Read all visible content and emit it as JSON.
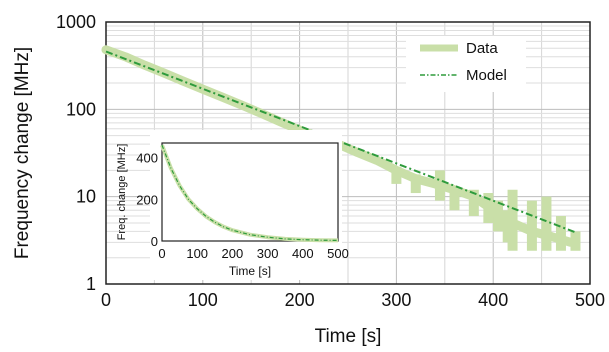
{
  "chart_data": [
    {
      "type": "line",
      "xlabel": "Time [s]",
      "ylabel": "Frequency change [MHz]",
      "yscale": "log",
      "xlim": [
        0,
        500
      ],
      "ylim": [
        1,
        1000
      ],
      "x_ticks": [
        "0",
        "100",
        "200",
        "300",
        "400",
        "500"
      ],
      "y_ticks": [
        "1",
        "10",
        "100",
        "1000"
      ],
      "grid": true,
      "legend_position": "top-right",
      "series": [
        {
          "name": "Data",
          "style": "thick-band",
          "color": "#c9dfa8",
          "x": [
            0,
            20,
            40,
            60,
            80,
            100,
            120,
            140,
            160,
            180,
            200,
            220,
            240,
            260,
            280,
            300,
            320,
            340,
            360,
            380,
            400,
            420,
            440,
            460,
            480,
            485
          ],
          "y": [
            480,
            400,
            320,
            260,
            210,
            170,
            138,
            112,
            90,
            72,
            58,
            48,
            40,
            32,
            26,
            20,
            16,
            14,
            12,
            10,
            7,
            5,
            4,
            3.5,
            3,
            3
          ]
        },
        {
          "name": "Model",
          "style": "dash-dot",
          "color": "#2e9b3c",
          "x": [
            0,
            485
          ],
          "y": [
            460,
            3.9
          ]
        }
      ]
    },
    {
      "type": "line",
      "xlabel": "Time [s]",
      "ylabel": "Freq. change [MHz]",
      "xlim": [
        0,
        500
      ],
      "ylim": [
        0,
        470
      ],
      "x_ticks": [
        "0",
        "100",
        "200",
        "300",
        "400",
        "500"
      ],
      "y_ticks": [
        "0",
        "200",
        "400"
      ],
      "grid": false,
      "series": [
        {
          "name": "Data",
          "color": "#c9dfa8",
          "x": [
            0,
            25,
            50,
            75,
            100,
            125,
            150,
            175,
            200,
            250,
            300,
            350,
            400,
            450,
            500
          ],
          "y": [
            460,
            350,
            265,
            200,
            155,
            118,
            90,
            68,
            52,
            30,
            18,
            10,
            6,
            4,
            3
          ]
        },
        {
          "name": "Model",
          "color": "#2e9b3c",
          "x": [
            0,
            25,
            50,
            75,
            100,
            125,
            150,
            175,
            200,
            250,
            300,
            350,
            400,
            450,
            500
          ],
          "y": [
            460,
            350,
            265,
            200,
            155,
            118,
            90,
            68,
            52,
            30,
            18,
            10,
            6,
            4,
            3
          ]
        }
      ]
    }
  ]
}
